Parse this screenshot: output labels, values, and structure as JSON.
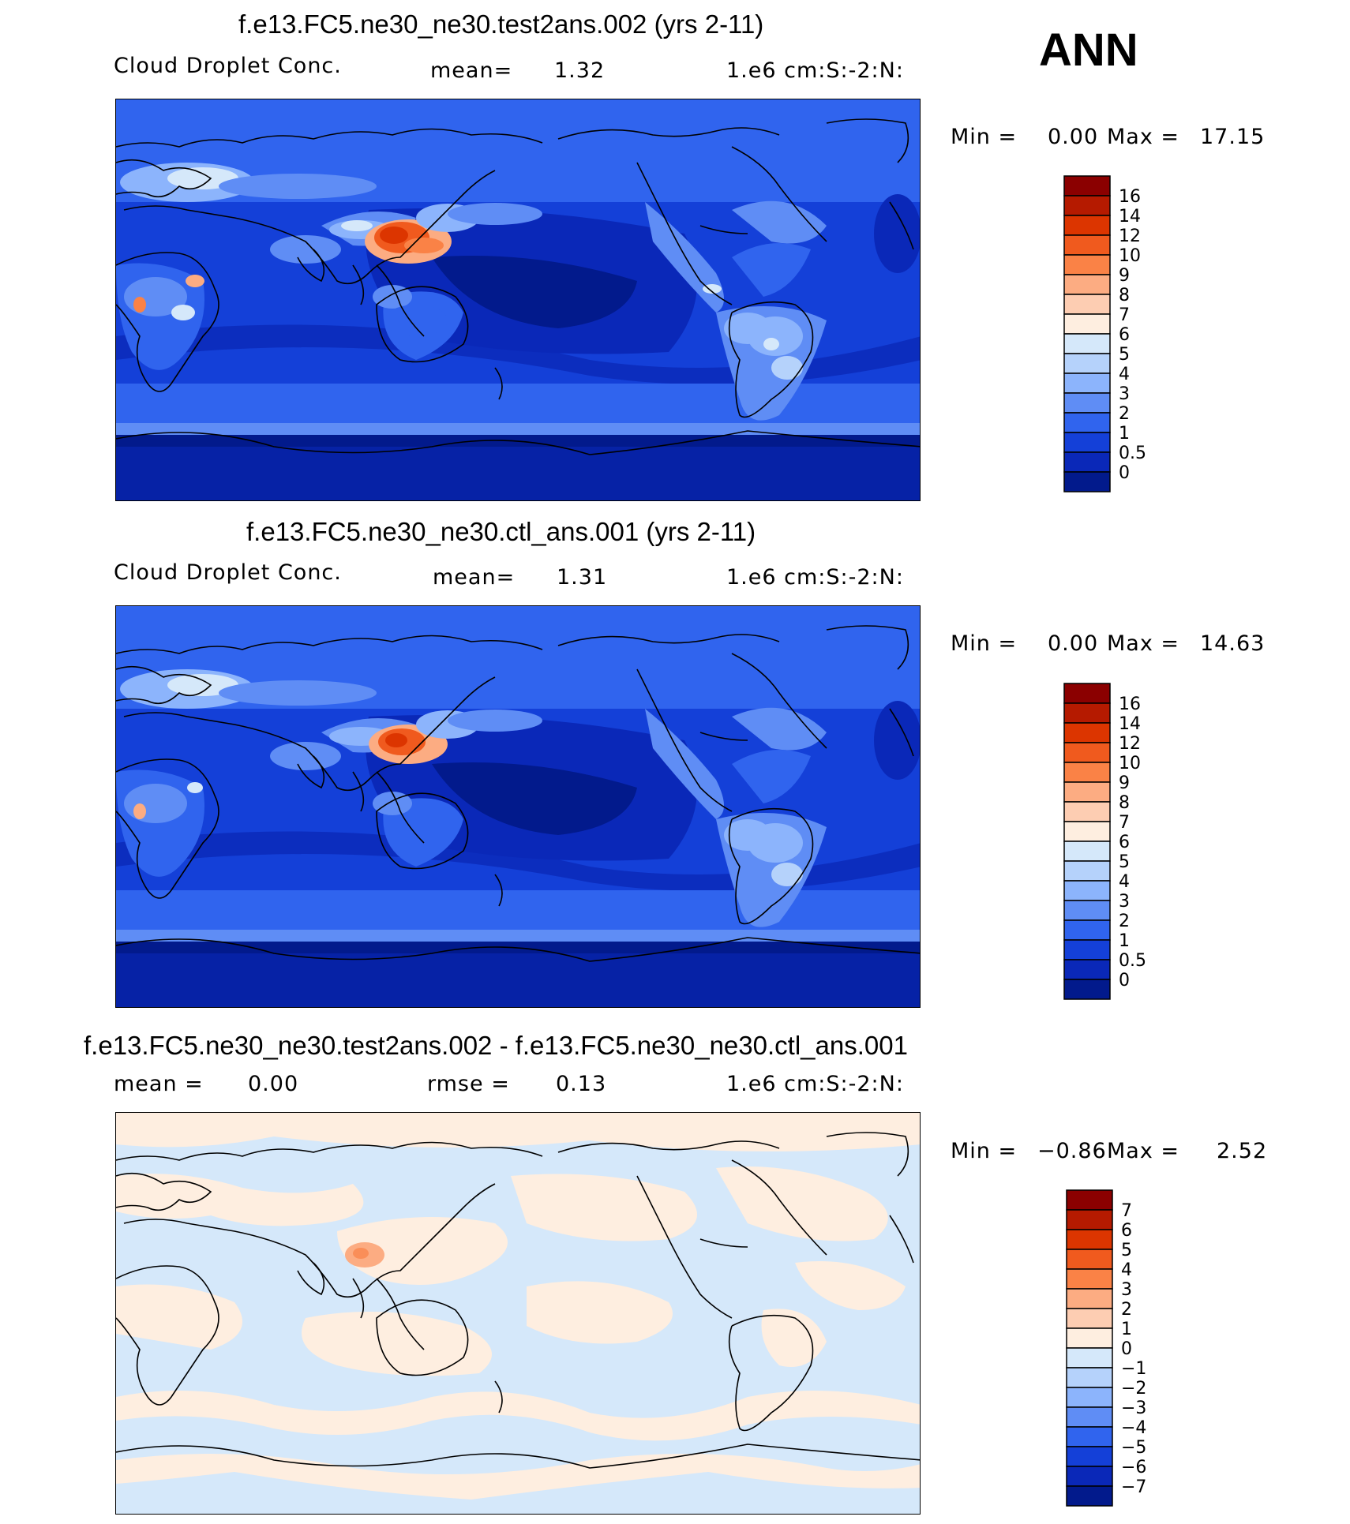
{
  "season": "ANN",
  "panels": [
    {
      "title": "f.e13.FC5.ne30_ne30.test2ans.002 (yrs 2-11)",
      "left_label": "Cloud Droplet Conc.",
      "mid_label": "mean=",
      "mid_value": "1.32",
      "right_label": "1.e6 cm:S:-2:N:",
      "min_label": "Min =",
      "min_value": "0.00",
      "max_label": "Max =",
      "max_value": "17.15",
      "levels": [
        "16",
        "14",
        "12",
        "10",
        "9",
        "8",
        "7",
        "6",
        "5",
        "4",
        "3",
        "2",
        "1",
        "0.5",
        "0"
      ],
      "colors": [
        "#8b0000",
        "#b51a00",
        "#dc3500",
        "#f05a1e",
        "#fa8246",
        "#fcac82",
        "#fdcdb2",
        "#feeee0",
        "#d5e8fa",
        "#b5d2fb",
        "#8cb4fc",
        "#5f8df5",
        "#3064ee",
        "#1440d8",
        "#0a28b8",
        "#021a8c"
      ]
    },
    {
      "title": "f.e13.FC5.ne30_ne30.ctl_ans.001 (yrs 2-11)",
      "left_label": "Cloud Droplet Conc.",
      "mid_label": "mean=",
      "mid_value": "1.31",
      "right_label": "1.e6 cm:S:-2:N:",
      "min_label": "Min =",
      "min_value": "0.00",
      "max_label": "Max =",
      "max_value": "14.63",
      "levels": [
        "16",
        "14",
        "12",
        "10",
        "9",
        "8",
        "7",
        "6",
        "5",
        "4",
        "3",
        "2",
        "1",
        "0.5",
        "0"
      ],
      "colors": [
        "#8b0000",
        "#b51a00",
        "#dc3500",
        "#f05a1e",
        "#fa8246",
        "#fcac82",
        "#fdcdb2",
        "#feeee0",
        "#d5e8fa",
        "#b5d2fb",
        "#8cb4fc",
        "#5f8df5",
        "#3064ee",
        "#1440d8",
        "#0a28b8",
        "#021a8c"
      ]
    },
    {
      "title": "f.e13.FC5.ne30_ne30.test2ans.002 - f.e13.FC5.ne30_ne30.ctl_ans.001",
      "left_label": "mean =",
      "left_value": "0.00",
      "mid_label": "rmse =",
      "mid_value": "0.13",
      "right_label": "1.e6 cm:S:-2:N:",
      "min_label": "Min =",
      "min_value": "−0.86",
      "max_label": "Max =",
      "max_value": "2.52",
      "levels": [
        "7",
        "6",
        "5",
        "4",
        "3",
        "2",
        "1",
        "0",
        "−1",
        "−2",
        "−3",
        "−4",
        "−5",
        "−6",
        "−7"
      ],
      "colors": [
        "#8b0000",
        "#b51a00",
        "#dc3500",
        "#f05a1e",
        "#fa8246",
        "#fcac82",
        "#fdcdb2",
        "#feeee0",
        "#d5e8fa",
        "#b5d2fb",
        "#8cb4fc",
        "#5f8df5",
        "#3064ee",
        "#1440d8",
        "#0a28b8",
        "#021a8c"
      ]
    }
  ],
  "chart_data": [
    {
      "type": "heatmap",
      "title": "f.e13.FC5.ne30_ne30.test2ans.002 (yrs 2-11)",
      "variable": "Cloud Droplet Conc.",
      "units": "1.e6 cm:S:-2:N:",
      "mean": 1.32,
      "min": 0.0,
      "max": 17.15,
      "contour_levels": [
        0,
        0.5,
        1,
        2,
        3,
        4,
        5,
        6,
        7,
        8,
        9,
        10,
        12,
        14,
        16
      ]
    },
    {
      "type": "heatmap",
      "title": "f.e13.FC5.ne30_ne30.ctl_ans.001 (yrs 2-11)",
      "variable": "Cloud Droplet Conc.",
      "units": "1.e6 cm:S:-2:N:",
      "mean": 1.31,
      "min": 0.0,
      "max": 14.63,
      "contour_levels": [
        0,
        0.5,
        1,
        2,
        3,
        4,
        5,
        6,
        7,
        8,
        9,
        10,
        12,
        14,
        16
      ]
    },
    {
      "type": "heatmap",
      "title": "f.e13.FC5.ne30_ne30.test2ans.002 - f.e13.FC5.ne30_ne30.ctl_ans.001",
      "units": "1.e6 cm:S:-2:N:",
      "mean": 0.0,
      "rmse": 0.13,
      "min": -0.86,
      "max": 2.52,
      "contour_levels": [
        -7,
        -6,
        -5,
        -4,
        -3,
        -2,
        -1,
        0,
        1,
        2,
        3,
        4,
        5,
        6,
        7
      ]
    }
  ]
}
